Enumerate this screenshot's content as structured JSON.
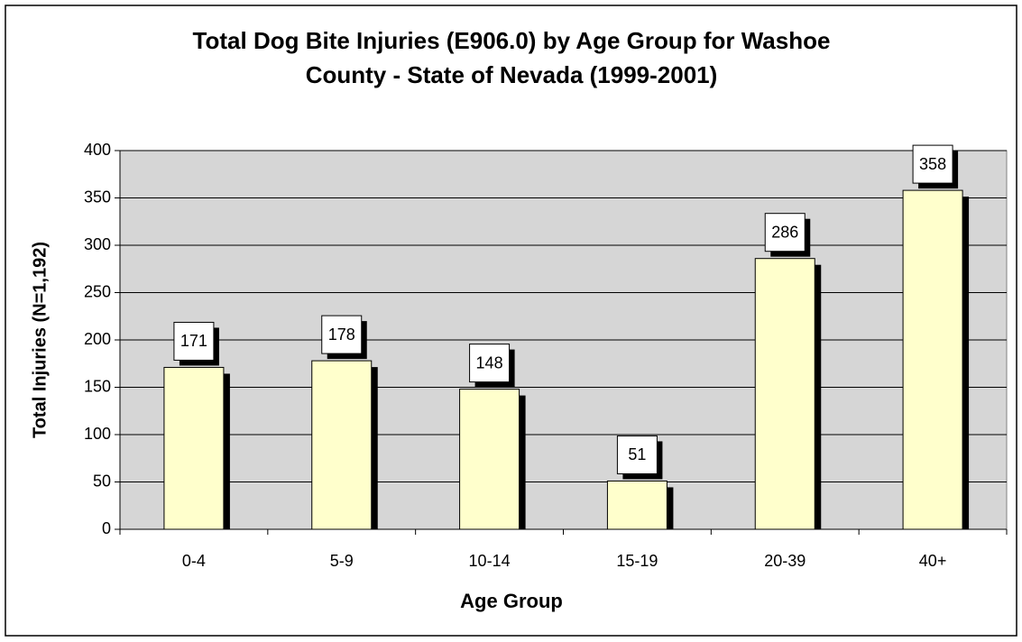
{
  "chart_data": {
    "type": "bar",
    "title": "Total Dog Bite Injuries (E906.0) by Age Group for Washoe County - State of Nevada (1999-2001)",
    "x_label": "Age Group",
    "y_label": "Total Injuries (N=1,192)",
    "categories": [
      "0-4",
      "5-9",
      "10-14",
      "15-19",
      "20-39",
      "40+"
    ],
    "values": [
      171,
      178,
      148,
      51,
      286,
      358
    ],
    "color": "#ffffcc",
    "ylim": [
      0,
      400
    ],
    "yticks": [
      0,
      50,
      100,
      150,
      200,
      250,
      300,
      350,
      400
    ],
    "grid": true
  }
}
